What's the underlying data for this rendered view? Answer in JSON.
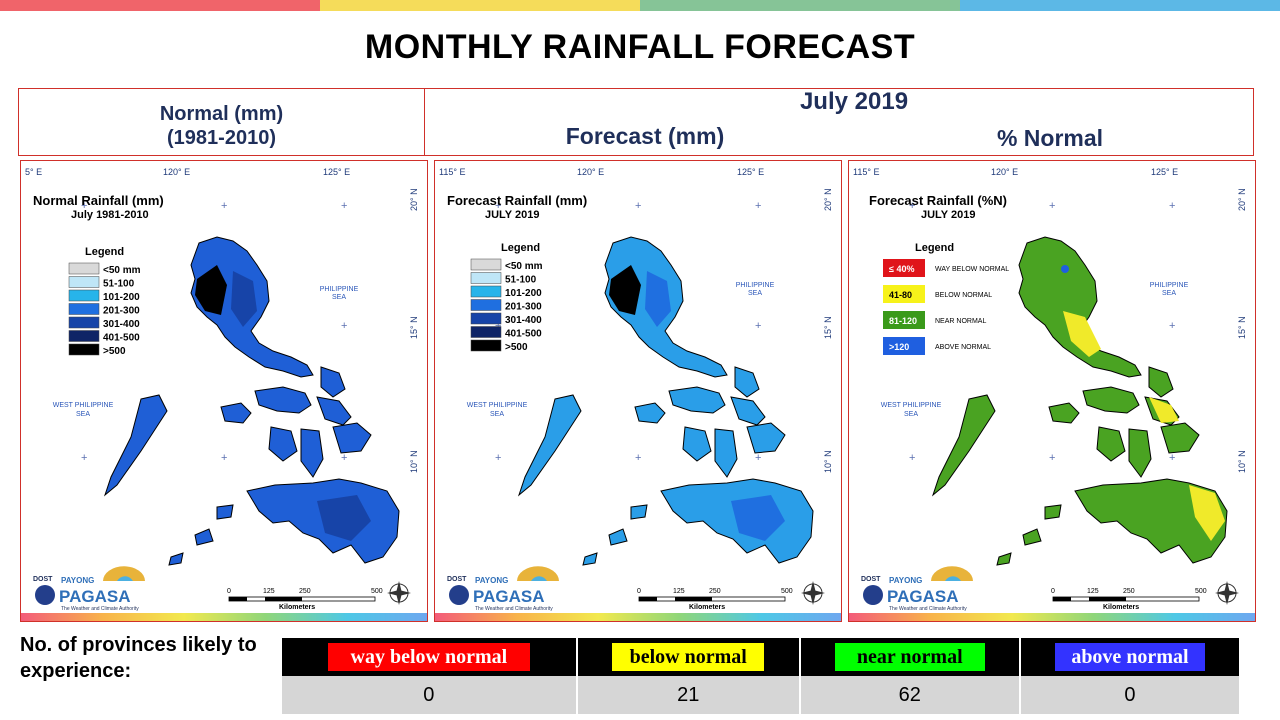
{
  "page": {
    "title": "MONTHLY RAINFALL FORECAST",
    "top_colors": [
      "#f0646a",
      "#f5dc5a",
      "#86c497",
      "#5cb8e6"
    ]
  },
  "headers": {
    "normal_line1": "Normal (mm)",
    "normal_line2": "(1981-2010)",
    "month": "July 2019",
    "forecast": "Forecast (mm)",
    "percent": "% Normal"
  },
  "maps": [
    {
      "title_line1": "Normal Rainfall (mm)",
      "title_line2": "July 1981-2010",
      "legend_title": "Legend",
      "legend": [
        {
          "label": "<50 mm",
          "color": "#d9d9d9"
        },
        {
          "label": "51-100",
          "color": "#bfe6f7"
        },
        {
          "label": "101-200",
          "color": "#27b4ea"
        },
        {
          "label": "201-300",
          "color": "#1f6fe0"
        },
        {
          "label": "301-400",
          "color": "#1744a8"
        },
        {
          "label": "401-500",
          "color": "#0f2466"
        },
        {
          "label": ">500",
          "color": "#000000"
        }
      ],
      "lon_labels": [
        "5° E",
        "120° E",
        "125° E"
      ],
      "lat_labels": [
        "20° N",
        "15° N",
        "10° N"
      ],
      "sea_east": [
        "PHILIPPINE",
        "SEA"
      ],
      "sea_west": [
        "WEST PHILIPPINE",
        "SEA"
      ],
      "scale": [
        "0",
        "125",
        "250",
        "500",
        "Kilometers"
      ],
      "fill_main": "#1f5fd6",
      "fill_dark": "#1744a8"
    },
    {
      "title_line1": "Forecast Rainfall (mm)",
      "title_line2": "JULY 2019",
      "legend_title": "Legend",
      "legend": [
        {
          "label": "<50 mm",
          "color": "#d9d9d9"
        },
        {
          "label": "51-100",
          "color": "#bfe6f7"
        },
        {
          "label": "101-200",
          "color": "#27b4ea"
        },
        {
          "label": "201-300",
          "color": "#1f6fe0"
        },
        {
          "label": "301-400",
          "color": "#1744a8"
        },
        {
          "label": "401-500",
          "color": "#0f2466"
        },
        {
          "label": ">500",
          "color": "#000000"
        }
      ],
      "lon_labels": [
        "115° E",
        "120° E",
        "125° E"
      ],
      "lat_labels": [
        "20° N",
        "15° N",
        "10° N"
      ],
      "sea_east": [
        "PHILIPPINE",
        "SEA"
      ],
      "sea_west": [
        "WEST PHILIPPINE",
        "SEA"
      ],
      "scale": [
        "0",
        "125",
        "250",
        "500",
        "Kilometers"
      ],
      "fill_main": "#2a9ee8",
      "fill_dark": "#1f6fe0"
    },
    {
      "title_line1": "Forecast Rainfall (%N)",
      "title_line2": "JULY 2019",
      "legend_title": "Legend",
      "legend": [
        {
          "label": "≤ 40%",
          "desc": "WAY BELOW NORMAL",
          "color": "#e0141a"
        },
        {
          "label": "41-80",
          "desc": "BELOW NORMAL",
          "color": "#f7f21a"
        },
        {
          "label": "81-120",
          "desc": "NEAR NORMAL",
          "color": "#3a9a1a"
        },
        {
          "label": ">120",
          "desc": "ABOVE NORMAL",
          "color": "#1f5fe0"
        }
      ],
      "lon_labels": [
        "115° E",
        "120° E",
        "125° E"
      ],
      "lat_labels": [
        "20° N",
        "15° N",
        "10° N"
      ],
      "sea_east": [
        "PHILIPPINE",
        "SEA"
      ],
      "sea_west": [
        "WEST PHILIPPINE",
        "SEA"
      ],
      "scale": [
        "0",
        "125",
        "250",
        "500",
        "Kilometers"
      ],
      "fill_main": "#4aa322",
      "fill_dark": "#f0ea2a"
    }
  ],
  "logo": {
    "dost": "DOST",
    "payong": "PAYONG",
    "pagasa": "PAGASA",
    "tagline": "The Weather and Climate Authority"
  },
  "provinces": {
    "label": "No. of provinces likely to experience:",
    "categories": [
      {
        "label": "way below normal",
        "count": "0",
        "bg": "#ff0000",
        "fg": "#ffffff"
      },
      {
        "label": "below normal",
        "count": "21",
        "bg": "#ffff00",
        "fg": "#000000"
      },
      {
        "label": "near normal",
        "count": "62",
        "bg": "#00ff00",
        "fg": "#000000"
      },
      {
        "label": "above normal",
        "count": "0",
        "bg": "#3333ff",
        "fg": "#ffffff"
      }
    ]
  }
}
